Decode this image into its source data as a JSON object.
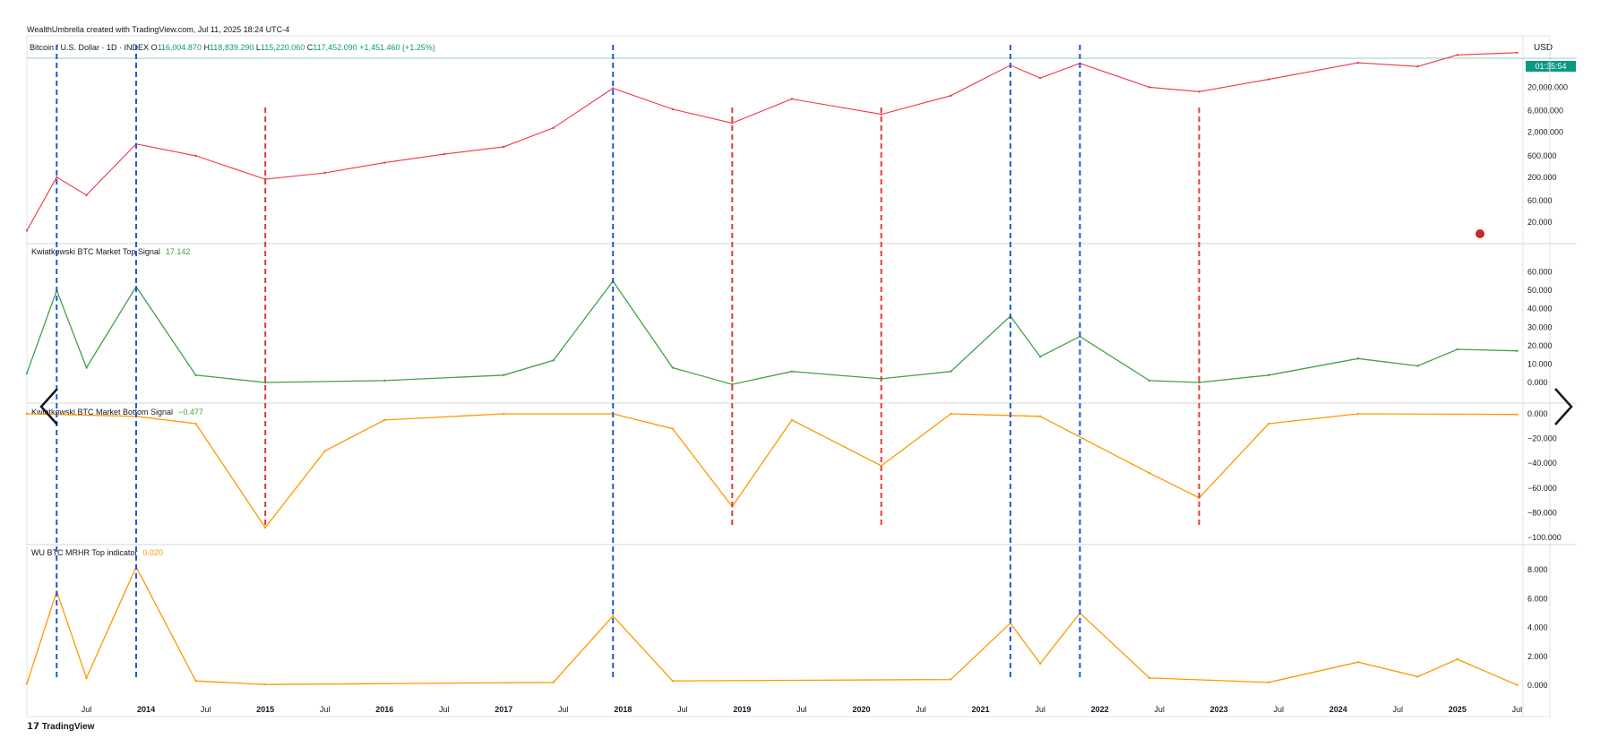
{
  "header": {
    "attribution": "WealthUmbrella created with TradingView.com, Jul 11, 2025 18:24 UTC-4",
    "symbol": "Bitcoin / U.S. Dollar · 1D · INDEX",
    "open_label": "O",
    "open": "116,004.870",
    "high_label": "H",
    "high": "118,839.290",
    "low_label": "L",
    "low": "115,220.060",
    "close_label": "C",
    "close": "117,452.090",
    "change": "+1,451.460 (+1.25%)"
  },
  "price_axis": {
    "currency": "USD",
    "countdown": "01:35:54",
    "ticks": [
      "20,000.000",
      "6,000.000",
      "2,000.000",
      "600.000",
      "200.000",
      "60.000",
      "20.000"
    ]
  },
  "panes": {
    "top_signal": {
      "label": "Kwiatkowski BTC Market Top Signal",
      "value": "17.142",
      "value_color": "#43a047",
      "ticks": [
        "60.000",
        "50.000",
        "40.000",
        "30.000",
        "20.000",
        "10.000",
        "0.000"
      ]
    },
    "bottom_signal": {
      "label": "Kwiatkowski BTC Market Bottom Signal",
      "value": "−0.477",
      "value_color": "#43a047",
      "ticks": [
        "0.000",
        "−20.000",
        "−40.000",
        "−60.000",
        "−80.000",
        "−100.000"
      ]
    },
    "mrhr": {
      "label": "WU BTC MRHR Top indicator",
      "value": "0.020",
      "value_color": "#ff9800",
      "ticks": [
        "8.000",
        "6.000",
        "4.000",
        "2.000",
        "0.000"
      ]
    }
  },
  "time_axis": {
    "ticks": [
      "Jul",
      "2014",
      "Jul",
      "2015",
      "Jul",
      "2016",
      "Jul",
      "2017",
      "Jul",
      "2018",
      "Jul",
      "2019",
      "Jul",
      "2020",
      "Jul",
      "2021",
      "Jul",
      "2022",
      "Jul",
      "2023",
      "Jul",
      "2024",
      "Jul",
      "2025",
      "Jul"
    ]
  },
  "branding": {
    "logo": "TradingView"
  },
  "colors": {
    "peak_line": "#1e56d6",
    "bottom_line": "#e53935",
    "up": "#089981",
    "down": "#f23645",
    "green": "#43a047",
    "yellow": "#f5d90a",
    "orange": "#ff9800",
    "red": "#ef5350",
    "blue": "#2155e8"
  },
  "chart_data": {
    "type": "line",
    "x_axis": "date",
    "title": "Bitcoin / U.S. Dollar · 1D · INDEX",
    "price_scale": "log",
    "markers": {
      "peaks": [
        "2013-04",
        "2013-12",
        "2017-12",
        "2021-04",
        "2021-11"
      ],
      "bottoms": [
        "2015-01",
        "2018-12",
        "2020-03",
        "2022-11"
      ]
    },
    "price": {
      "x": [
        "2013-01",
        "2013-04",
        "2013-07",
        "2013-12",
        "2014-06",
        "2015-01",
        "2015-07",
        "2016-01",
        "2016-07",
        "2017-01",
        "2017-06",
        "2017-12",
        "2018-06",
        "2018-12",
        "2019-06",
        "2020-03",
        "2020-10",
        "2021-04",
        "2021-07",
        "2021-11",
        "2022-06",
        "2022-11",
        "2023-06",
        "2024-03",
        "2024-09",
        "2025-01",
        "2025-07"
      ],
      "y": [
        13,
        200,
        80,
        1100,
        600,
        180,
        250,
        420,
        650,
        950,
        2500,
        19000,
        6500,
        3200,
        11000,
        5000,
        13000,
        62000,
        32000,
        68000,
        20000,
        16000,
        30000,
        70000,
        58000,
        105000,
        117452
      ]
    },
    "top_signal": {
      "x": [
        "2013-01",
        "2013-04",
        "2013-07",
        "2013-12",
        "2014-06",
        "2015-01",
        "2016-01",
        "2017-01",
        "2017-06",
        "2017-12",
        "2018-06",
        "2018-12",
        "2019-06",
        "2020-03",
        "2020-10",
        "2021-04",
        "2021-07",
        "2021-11",
        "2022-06",
        "2022-11",
        "2023-06",
        "2024-03",
        "2024-09",
        "2025-01",
        "2025-07"
      ],
      "y": [
        5,
        50,
        8,
        52,
        4,
        0,
        1,
        4,
        12,
        55,
        8,
        -1,
        6,
        2,
        6,
        36,
        14,
        25,
        1,
        0,
        4,
        13,
        9,
        18,
        17.142
      ]
    },
    "bottom_signal": {
      "x": [
        "2013-01",
        "2013-12",
        "2014-06",
        "2015-01",
        "2015-07",
        "2016-01",
        "2017-01",
        "2017-12",
        "2018-06",
        "2018-12",
        "2019-06",
        "2020-03",
        "2020-10",
        "2021-07",
        "2022-06",
        "2022-11",
        "2023-06",
        "2024-03",
        "2025-07"
      ],
      "y": [
        0,
        -2,
        -8,
        -92,
        -30,
        -5,
        0,
        0,
        -12,
        -75,
        -5,
        -42,
        0,
        -2,
        -48,
        -68,
        -8,
        0,
        -0.477
      ]
    },
    "mrhr": {
      "x": [
        "2013-01",
        "2013-04",
        "2013-07",
        "2013-12",
        "2014-06",
        "2015-01",
        "2017-06",
        "2017-12",
        "2018-06",
        "2020-10",
        "2021-04",
        "2021-07",
        "2021-11",
        "2022-06",
        "2023-06",
        "2024-03",
        "2024-09",
        "2025-01",
        "2025-07"
      ],
      "y": [
        0.1,
        6.5,
        0.5,
        8.2,
        0.3,
        0.05,
        0.2,
        4.8,
        0.3,
        0.4,
        4.3,
        1.5,
        5,
        0.5,
        0.2,
        1.6,
        0.6,
        1.8,
        0.02
      ]
    }
  }
}
